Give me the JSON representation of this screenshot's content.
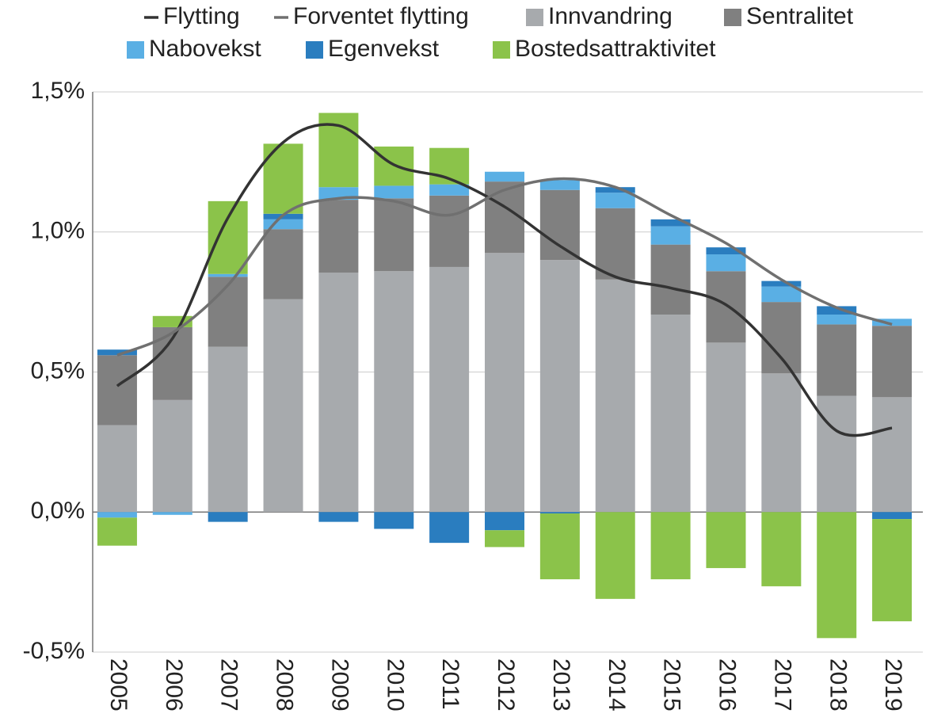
{
  "chart_data": {
    "type": "bar",
    "categories": [
      "2005",
      "2006",
      "2007",
      "2008",
      "2009",
      "2010",
      "2011",
      "2012",
      "2013",
      "2014",
      "2015",
      "2016",
      "2017",
      "2018",
      "2019"
    ],
    "series": [
      {
        "name": "Flytting",
        "type": "line",
        "color": "#333333",
        "values": [
          0.45,
          0.62,
          1.05,
          1.32,
          1.38,
          1.24,
          1.19,
          1.09,
          0.95,
          0.84,
          0.8,
          0.74,
          0.55,
          0.29,
          0.3
        ]
      },
      {
        "name": "Forventet flytting",
        "type": "line",
        "color": "#707070",
        "values": [
          0.56,
          0.64,
          0.81,
          1.06,
          1.12,
          1.11,
          1.06,
          1.15,
          1.19,
          1.16,
          1.06,
          0.96,
          0.83,
          0.73,
          0.67
        ]
      },
      {
        "name": "Innvandring",
        "type": "bar",
        "color": "#a7aaad",
        "values": [
          0.31,
          0.4,
          0.59,
          0.76,
          0.855,
          0.86,
          0.875,
          0.925,
          0.9,
          0.83,
          0.705,
          0.605,
          0.495,
          0.415,
          0.41
        ]
      },
      {
        "name": "Sentralitet",
        "type": "bar",
        "color": "#808080",
        "values": [
          0.25,
          0.26,
          0.25,
          0.25,
          0.26,
          0.26,
          0.255,
          0.255,
          0.25,
          0.255,
          0.25,
          0.255,
          0.255,
          0.255,
          0.255
        ]
      },
      {
        "name": "Nabovekst",
        "type": "bar",
        "color": "#5aafe4",
        "values": [
          -0.02,
          -0.01,
          0.01,
          0.035,
          0.045,
          0.045,
          0.04,
          0.035,
          0.035,
          0.055,
          0.065,
          0.06,
          0.055,
          0.035,
          0.025
        ]
      },
      {
        "name": "Egenvekst",
        "type": "bar",
        "color": "#2a7dbf",
        "values": [
          0.02,
          0,
          -0.035,
          0.02,
          -0.035,
          -0.06,
          -0.11,
          -0.065,
          -0.005,
          0.02,
          0.025,
          0.025,
          0.02,
          0.03,
          -0.025
        ]
      },
      {
        "name": "Bostedsattraktivitet",
        "type": "bar",
        "color": "#8bc34a",
        "values": [
          -0.1,
          0.04,
          0.26,
          0.25,
          0.265,
          0.14,
          0.13,
          -0.06,
          -0.235,
          -0.31,
          -0.24,
          -0.2,
          -0.265,
          -0.45,
          -0.365
        ]
      }
    ],
    "ylim": [
      -0.5,
      1.5
    ],
    "yticks": [
      {
        "value": -0.5,
        "label": "-0,5%"
      },
      {
        "value": 0,
        "label": "0,0%"
      },
      {
        "value": 0.5,
        "label": "0,5%"
      },
      {
        "value": 1,
        "label": "1,0%"
      },
      {
        "value": 1.5,
        "label": "1,5%"
      }
    ],
    "grid": true
  }
}
